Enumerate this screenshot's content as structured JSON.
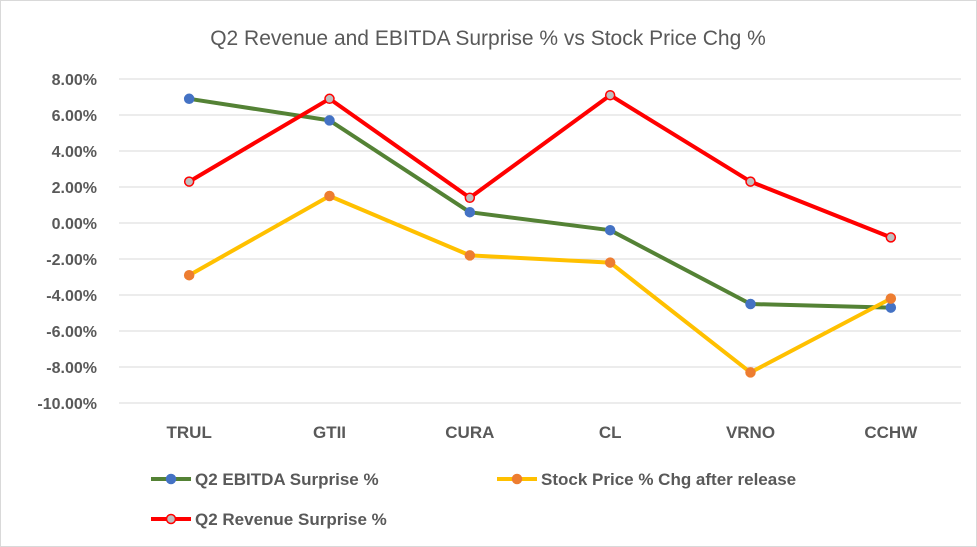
{
  "chart_data": {
    "type": "line",
    "title": "Q2 Revenue and EBITDA Surprise % vs Stock Price Chg %",
    "categories": [
      "TRUL",
      "GTII",
      "CURA",
      "CL",
      "VRNO",
      "CCHW"
    ],
    "ylim": [
      -10,
      8
    ],
    "ytick_step": 2,
    "ytick_labels": [
      "8.00%",
      "6.00%",
      "4.00%",
      "2.00%",
      "0.00%",
      "-2.00%",
      "-4.00%",
      "-6.00%",
      "-8.00%",
      "-10.00%"
    ],
    "grid": true,
    "legend_position": "bottom",
    "series": [
      {
        "name": "Q2 EBITDA Surprise %",
        "values": [
          6.9,
          5.7,
          0.6,
          -0.4,
          -4.5,
          -4.7
        ],
        "line_color": "#548235",
        "marker_fill": "#4472c4",
        "marker_stroke": "#4472c4"
      },
      {
        "name": "Stock Price % Chg after release",
        "values": [
          -2.9,
          1.5,
          -1.8,
          -2.2,
          -8.3,
          -4.2
        ],
        "line_color": "#ffc000",
        "marker_fill": "#ed7d31",
        "marker_stroke": "#ed7d31"
      },
      {
        "name": "Q2 Revenue Surprise %",
        "values": [
          2.3,
          6.9,
          1.4,
          7.1,
          2.3,
          -0.8
        ],
        "line_color": "#ff0000",
        "marker_fill": "#bfbfbf",
        "marker_stroke": "#ff0000"
      }
    ]
  }
}
